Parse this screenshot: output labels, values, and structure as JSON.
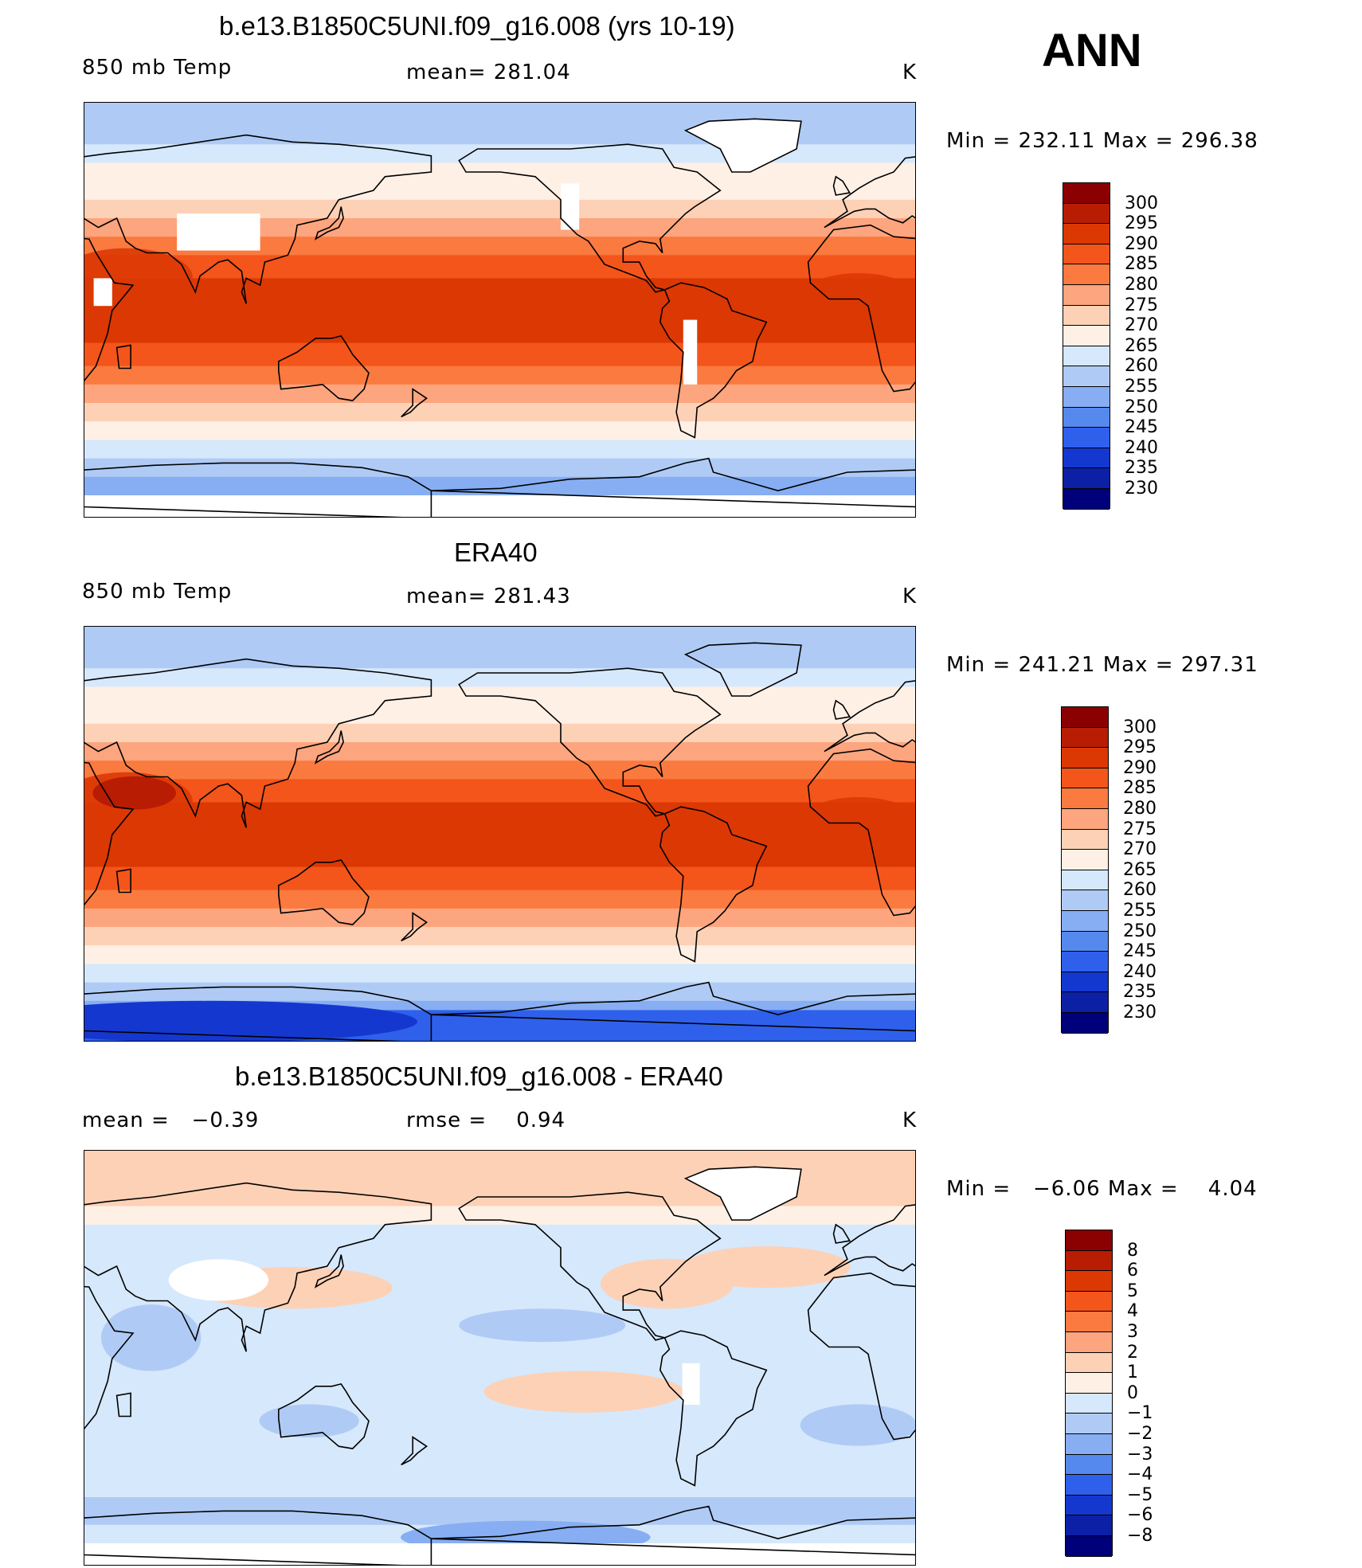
{
  "season": "ANN",
  "panels": [
    {
      "title": "b.e13.B1850C5UNI.f09_g16.008 (yrs 10-19)",
      "left_label": "850 mb Temp",
      "center_label": "mean= 281.04",
      "units": "K",
      "min_max": "Min = 232.11 Max = 296.38",
      "field": "model",
      "colorbar": {
        "labels": [
          "300",
          "295",
          "290",
          "285",
          "280",
          "275",
          "270",
          "265",
          "260",
          "255",
          "250",
          "245",
          "240",
          "235",
          "230"
        ],
        "colors": [
          "#8b0000",
          "#b81d04",
          "#dc3804",
          "#f4551a",
          "#fa7a3f",
          "#fca57e",
          "#fdd1b6",
          "#fff0e6",
          "#d6e8fb",
          "#afcbf5",
          "#87aef2",
          "#5689ee",
          "#2f60ec",
          "#1438cf",
          "#0c20a6",
          "#00007a"
        ]
      }
    },
    {
      "title": "ERA40",
      "left_label": "850 mb Temp",
      "center_label": "mean= 281.43",
      "units": "K",
      "min_max": "Min = 241.21 Max = 297.31",
      "field": "obs",
      "colorbar": {
        "labels": [
          "300",
          "295",
          "290",
          "285",
          "280",
          "275",
          "270",
          "265",
          "260",
          "255",
          "250",
          "245",
          "240",
          "235",
          "230"
        ],
        "colors": [
          "#8b0000",
          "#b81d04",
          "#dc3804",
          "#f4551a",
          "#fa7a3f",
          "#fca57e",
          "#fdd1b6",
          "#fff0e6",
          "#d6e8fb",
          "#afcbf5",
          "#87aef2",
          "#5689ee",
          "#2f60ec",
          "#1438cf",
          "#0c20a6",
          "#00007a"
        ]
      }
    },
    {
      "title": "b.e13.B1850C5UNI.f09_g16.008 - ERA40",
      "left_label": "mean =   −0.39",
      "center_label": "rmse =    0.94",
      "units": "K",
      "min_max": "Min =   −6.06 Max =    4.04",
      "field": "diff",
      "colorbar": {
        "labels": [
          "8",
          "6",
          "5",
          "4",
          "3",
          "2",
          "1",
          "0",
          "−1",
          "−2",
          "−3",
          "−4",
          "−5",
          "−6",
          "−8"
        ],
        "colors": [
          "#8b0000",
          "#b81d04",
          "#dc3804",
          "#f4551a",
          "#fa7a3f",
          "#fca57e",
          "#fdd1b6",
          "#fff0e6",
          "#d6e8fb",
          "#afcbf5",
          "#87aef2",
          "#5689ee",
          "#2f60ec",
          "#1438cf",
          "#0c20a6",
          "#00007a"
        ]
      }
    }
  ]
}
